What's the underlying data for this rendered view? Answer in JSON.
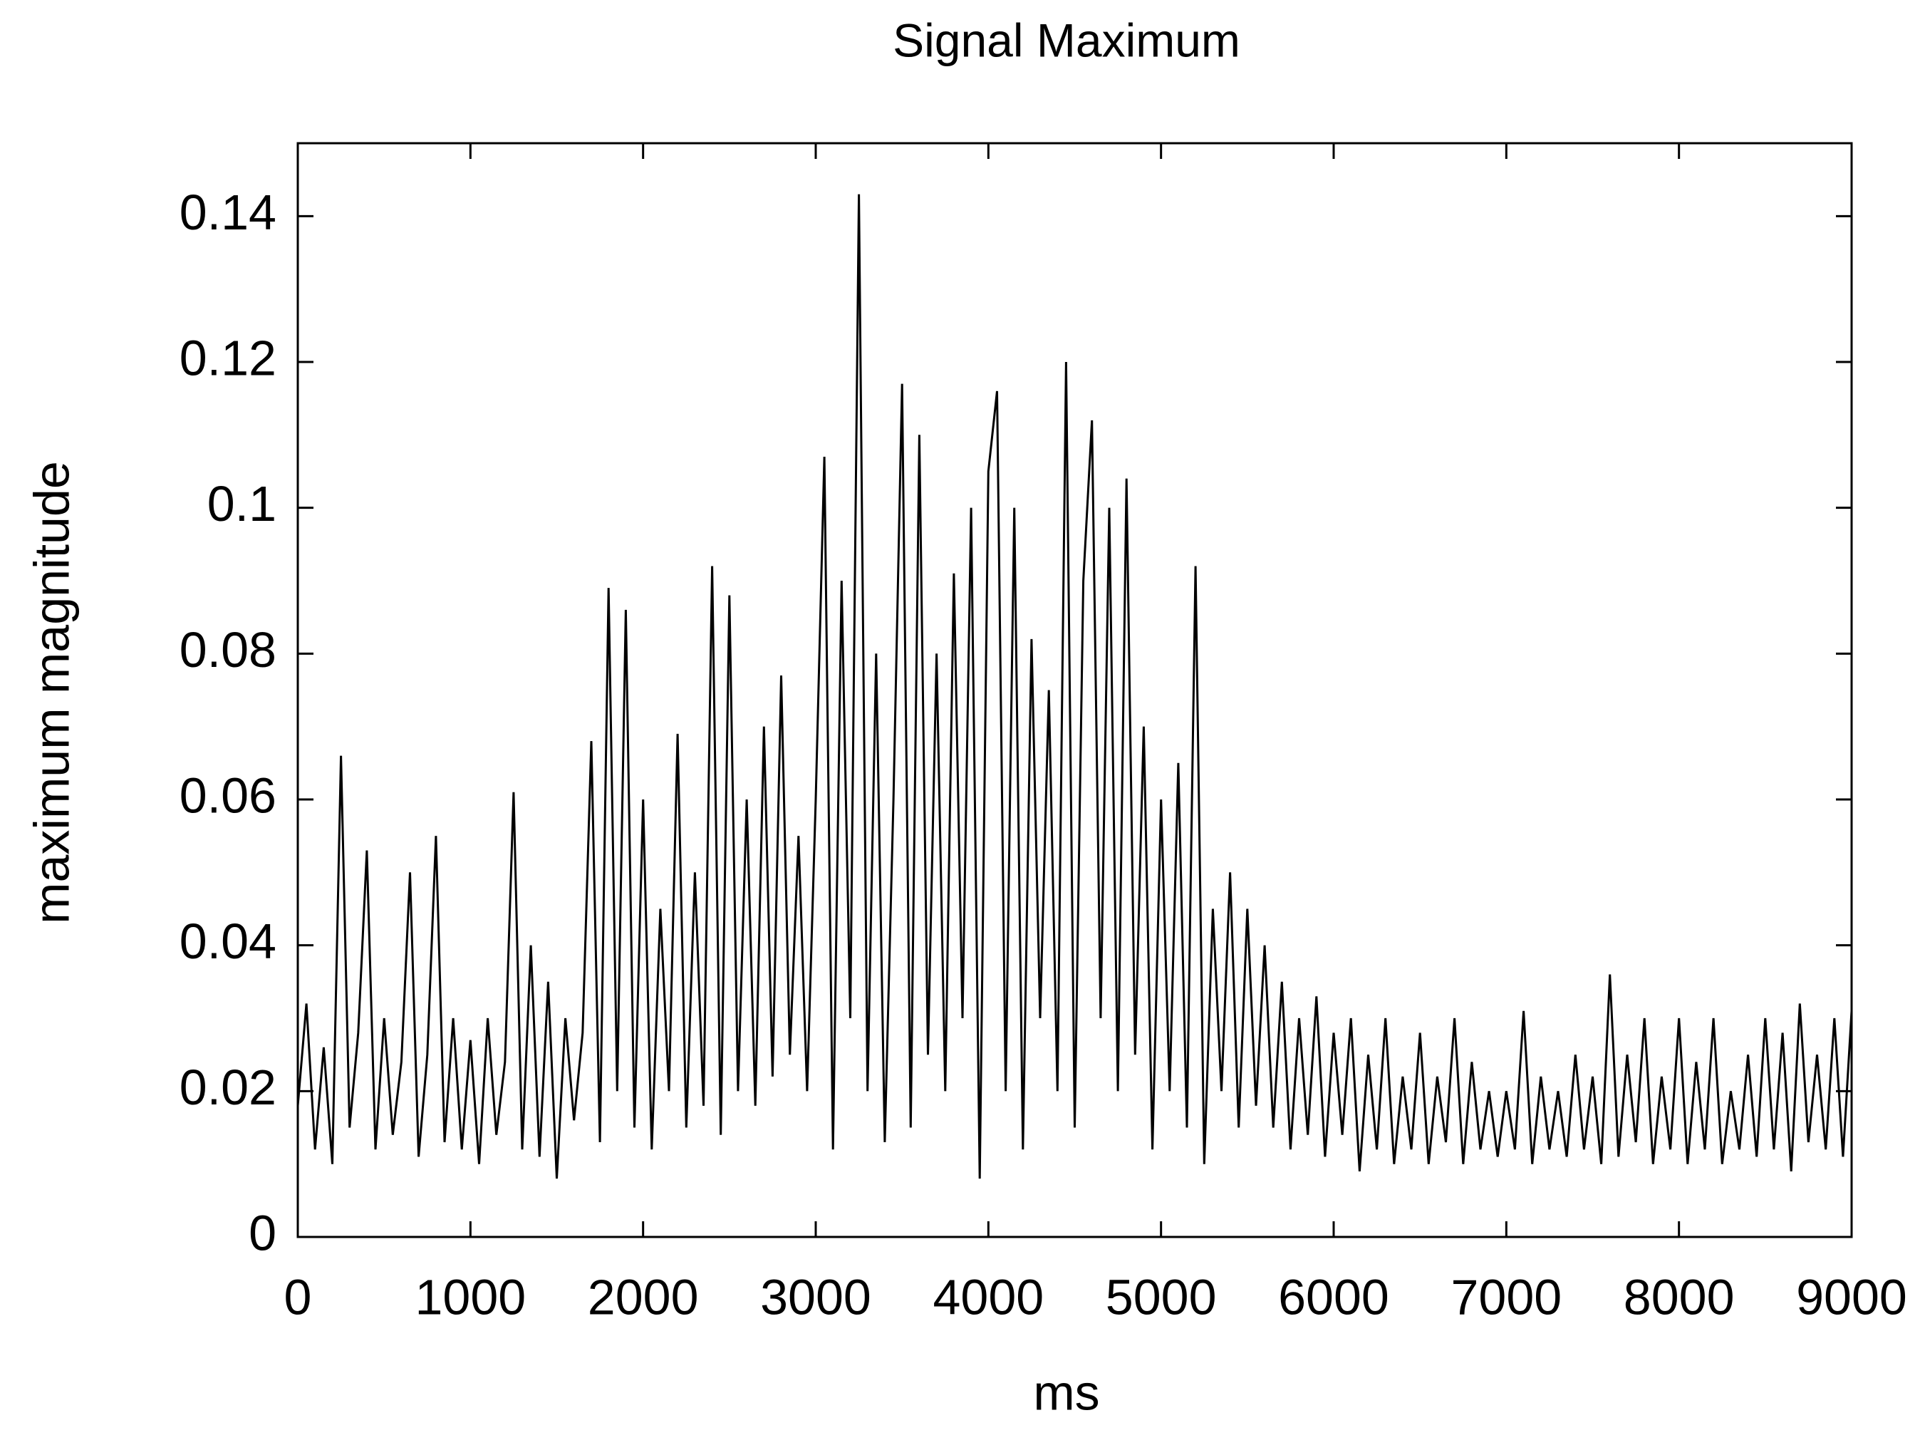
{
  "chart_data": {
    "type": "line",
    "title": "Signal Maximum",
    "x_label": "ms",
    "y_label": "maximum magnitude",
    "color": "#000000",
    "x": [
      0,
      50,
      100,
      150,
      200,
      250,
      300,
      350,
      400,
      450,
      500,
      550,
      600,
      650,
      700,
      750,
      800,
      850,
      900,
      950,
      1000,
      1050,
      1100,
      1150,
      1200,
      1250,
      1300,
      1350,
      1400,
      1450,
      1500,
      1550,
      1600,
      1650,
      1700,
      1750,
      1800,
      1850,
      1900,
      1950,
      2000,
      2050,
      2100,
      2150,
      2200,
      2250,
      2300,
      2350,
      2400,
      2450,
      2500,
      2550,
      2600,
      2650,
      2700,
      2750,
      2800,
      2850,
      2900,
      2950,
      3000,
      3050,
      3100,
      3150,
      3200,
      3250,
      3300,
      3350,
      3400,
      3450,
      3500,
      3550,
      3600,
      3650,
      3700,
      3750,
      3800,
      3850,
      3900,
      3950,
      4000,
      4050,
      4100,
      4150,
      4200,
      4250,
      4300,
      4350,
      4400,
      4450,
      4500,
      4550,
      4600,
      4650,
      4700,
      4750,
      4800,
      4850,
      4900,
      4950,
      5000,
      5050,
      5100,
      5150,
      5200,
      5250,
      5300,
      5350,
      5400,
      5450,
      5500,
      5550,
      5600,
      5650,
      5700,
      5750,
      5800,
      5850,
      5900,
      5950,
      6000,
      6050,
      6100,
      6150,
      6200,
      6250,
      6300,
      6350,
      6400,
      6450,
      6500,
      6550,
      6600,
      6650,
      6700,
      6750,
      6800,
      6850,
      6900,
      6950,
      7000,
      7050,
      7100,
      7150,
      7200,
      7250,
      7300,
      7350,
      7400,
      7450,
      7500,
      7550,
      7600,
      7650,
      7700,
      7750,
      7800,
      7850,
      7900,
      7950,
      8000,
      8050,
      8100,
      8150,
      8200,
      8250,
      8300,
      8350,
      8400,
      8450,
      8500,
      8550,
      8600,
      8650,
      8700,
      8750,
      8800,
      8850,
      8900,
      8950,
      9000
    ],
    "values": [
      0.018,
      0.032,
      0.012,
      0.026,
      0.01,
      0.066,
      0.015,
      0.028,
      0.053,
      0.012,
      0.03,
      0.014,
      0.024,
      0.05,
      0.011,
      0.025,
      0.055,
      0.013,
      0.03,
      0.012,
      0.027,
      0.01,
      0.03,
      0.014,
      0.024,
      0.061,
      0.012,
      0.04,
      0.011,
      0.035,
      0.008,
      0.03,
      0.016,
      0.028,
      0.068,
      0.013,
      0.089,
      0.02,
      0.086,
      0.015,
      0.06,
      0.012,
      0.045,
      0.02,
      0.069,
      0.015,
      0.05,
      0.018,
      0.092,
      0.014,
      0.088,
      0.02,
      0.06,
      0.018,
      0.07,
      0.022,
      0.077,
      0.025,
      0.055,
      0.02,
      0.06,
      0.107,
      0.012,
      0.09,
      0.03,
      0.143,
      0.02,
      0.08,
      0.013,
      0.06,
      0.117,
      0.015,
      0.11,
      0.025,
      0.08,
      0.02,
      0.091,
      0.03,
      0.1,
      0.008,
      0.105,
      0.116,
      0.02,
      0.1,
      0.012,
      0.082,
      0.03,
      0.075,
      0.02,
      0.12,
      0.015,
      0.09,
      0.112,
      0.03,
      0.1,
      0.02,
      0.104,
      0.025,
      0.07,
      0.012,
      0.06,
      0.02,
      0.065,
      0.015,
      0.092,
      0.01,
      0.045,
      0.02,
      0.05,
      0.015,
      0.045,
      0.018,
      0.04,
      0.015,
      0.035,
      0.012,
      0.03,
      0.014,
      0.033,
      0.011,
      0.028,
      0.014,
      0.03,
      0.009,
      0.025,
      0.012,
      0.03,
      0.01,
      0.022,
      0.012,
      0.028,
      0.01,
      0.022,
      0.013,
      0.03,
      0.01,
      0.024,
      0.012,
      0.02,
      0.011,
      0.02,
      0.012,
      0.031,
      0.01,
      0.022,
      0.012,
      0.02,
      0.011,
      0.025,
      0.012,
      0.022,
      0.01,
      0.036,
      0.011,
      0.025,
      0.013,
      0.03,
      0.01,
      0.022,
      0.012,
      0.03,
      0.01,
      0.024,
      0.012,
      0.03,
      0.01,
      0.02,
      0.012,
      0.025,
      0.011,
      0.03,
      0.012,
      0.028,
      0.009,
      0.032,
      0.013,
      0.025,
      0.012,
      0.03,
      0.011,
      0.031
    ],
    "xlim": [
      0,
      9000
    ],
    "xticks": [
      0,
      1000,
      2000,
      3000,
      4000,
      5000,
      6000,
      7000,
      8000,
      9000
    ],
    "ylim": [
      0,
      0.15
    ],
    "yticks": [
      0,
      0.02,
      0.04,
      0.06,
      0.08,
      0.1,
      0.12,
      0.14
    ],
    "grid": false
  }
}
